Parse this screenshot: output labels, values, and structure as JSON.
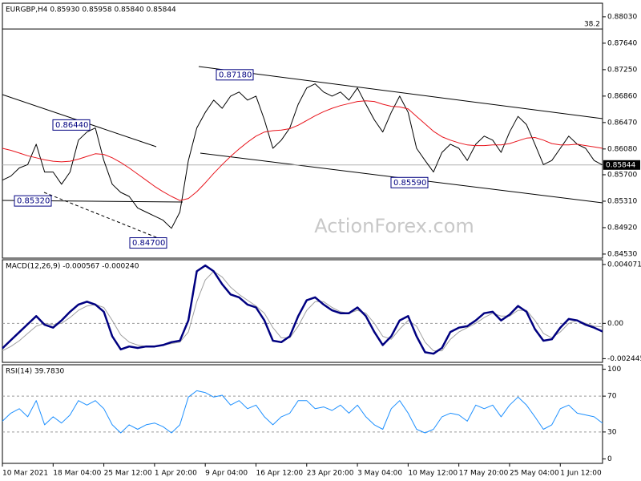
{
  "chart_data": [
    {
      "type": "line",
      "title": "EURGBP,H4 0.85930 0.85958 0.85840 0.85844",
      "ylim": [
        0.8447,
        0.8823
      ],
      "yticks": [
        {
          "value": 0.8803,
          "label": "0.88030"
        },
        {
          "value": 0.8764,
          "label": "0.87640"
        },
        {
          "value": 0.8725,
          "label": "0.87250"
        },
        {
          "value": 0.8686,
          "label": "0.86860"
        },
        {
          "value": 0.8647,
          "label": "0.86470"
        },
        {
          "value": 0.8608,
          "label": "0.86080"
        },
        {
          "value": 0.857,
          "label": "0.85700"
        },
        {
          "value": 0.8531,
          "label": "0.85310"
        },
        {
          "value": 0.8492,
          "label": "0.84920"
        },
        {
          "value": 0.8453,
          "label": "0.84530"
        }
      ],
      "series": [
        {
          "color": "#000000",
          "values": [
            0.8562,
            0.8568,
            0.858,
            0.8585,
            0.8615,
            0.8574,
            0.8574,
            0.8556,
            0.8574,
            0.8621,
            0.8633,
            0.8639,
            0.8591,
            0.8556,
            0.8544,
            0.8538,
            0.8521,
            0.8515,
            0.8509,
            0.8503,
            0.8491,
            0.8515,
            0.8591,
            0.8639,
            0.8662,
            0.868,
            0.8668,
            0.8686,
            0.8692,
            0.868,
            0.8686,
            0.8651,
            0.8609,
            0.8621,
            0.8639,
            0.8674,
            0.8698,
            0.8704,
            0.8692,
            0.8686,
            0.8692,
            0.868,
            0.8698,
            0.8674,
            0.8651,
            0.8633,
            0.8662,
            0.8686,
            0.8662,
            0.8609,
            0.8591,
            0.8574,
            0.8603,
            0.8615,
            0.8609,
            0.8591,
            0.8615,
            0.8627,
            0.8621,
            0.8603,
            0.8633,
            0.8656,
            0.8644,
            0.8615,
            0.8585,
            0.8591,
            0.8609,
            0.8627,
            0.8615,
            0.8609,
            0.8591,
            0.85844
          ]
        },
        {
          "color": "#e8141c",
          "values": [
            0.8609,
            0.8606,
            0.8602,
            0.8598,
            0.8595,
            0.8592,
            0.859,
            0.8589,
            0.859,
            0.8593,
            0.8597,
            0.8601,
            0.86,
            0.8595,
            0.8588,
            0.858,
            0.8571,
            0.8562,
            0.8553,
            0.8545,
            0.8538,
            0.8532,
            0.8535,
            0.8545,
            0.8558,
            0.8572,
            0.8585,
            0.8597,
            0.8608,
            0.8618,
            0.8627,
            0.8633,
            0.8635,
            0.8636,
            0.8638,
            0.8643,
            0.865,
            0.8657,
            0.8663,
            0.8668,
            0.8672,
            0.8675,
            0.8678,
            0.8679,
            0.8678,
            0.8674,
            0.8671,
            0.867,
            0.8667,
            0.8656,
            0.8645,
            0.8634,
            0.8626,
            0.8621,
            0.8617,
            0.8614,
            0.8613,
            0.8613,
            0.8614,
            0.8614,
            0.8616,
            0.862,
            0.8624,
            0.8625,
            0.8621,
            0.8616,
            0.8614,
            0.8614,
            0.8615,
            0.8613,
            0.8611,
            0.8609
          ]
        }
      ],
      "last_price": {
        "value": 0.85844,
        "label": "0.85844"
      },
      "fib_level": {
        "value": 0.8785,
        "label": "38.2"
      },
      "annotations": [
        {
          "value": 0.8644,
          "label": "0.86440"
        },
        {
          "value": 0.8532,
          "label": "0.85320"
        },
        {
          "value": 0.847,
          "label": "0.84700"
        },
        {
          "value": 0.8718,
          "label": "0.87180"
        },
        {
          "value": 0.8559,
          "label": "0.85590"
        }
      ],
      "watermark": "ActionForex.com"
    },
    {
      "type": "line",
      "title": "MACD(12,26,9) -0.000567 -0.000240",
      "ylim": [
        -0.0027,
        0.0044
      ],
      "yticks": [
        0.004071,
        {
          "value": 0,
          "label": "0.00"
        },
        -0.002445
      ],
      "dashed_levels": [
        0
      ],
      "series": [
        {
          "color": "#a0a0a0",
          "width": 1,
          "values": [
            -0.0019,
            -0.0016,
            -0.0012,
            -0.0007,
            -0.0002,
            0,
            -0.0001,
            0,
            0.0004,
            0.0009,
            0.0012,
            0.0013,
            0.0011,
            0.0002,
            -0.0008,
            -0.0013,
            -0.0015,
            -0.0016,
            -0.0016,
            -0.0015,
            -0.0014,
            -0.0013,
            -0.0006,
            0.0015,
            0.003,
            0.0036,
            0.0032,
            0.0025,
            0.002,
            0.0016,
            0.0012,
            0.0007,
            -0.0003,
            -0.001,
            -0.001,
            -0.0002,
            0.0009,
            0.0015,
            0.0015,
            0.0011,
            0.0008,
            0.0007,
            0.0009,
            0.0007,
            0,
            -0.0009,
            -0.0011,
            -0.0004,
            0.0002,
            -0.0002,
            -0.0013,
            -0.0019,
            -0.0019,
            -0.0011,
            -0.0006,
            -0.0003,
            0,
            0.0004,
            0.0007,
            0.0005,
            0.0005,
            0.0009,
            0.0009,
            0.0002,
            -0.0007,
            -0.001,
            -0.0006,
            0,
            0.0002,
            0,
            -0.0002,
            -0.00024
          ]
        },
        {
          "color": "#000080",
          "width": 2.5,
          "values": [
            -0.00173,
            -0.00117,
            -0.00061,
            -6e-05,
            0.0005,
            -0.0001,
            -0.0003,
            0.0002,
            0.0008,
            0.0013,
            0.0015,
            0.0013,
            0.0008,
            -0.0009,
            -0.0018,
            -0.0016,
            -0.0017,
            -0.0016,
            -0.0016,
            -0.0015,
            -0.0013,
            -0.0012,
            0.0002,
            0.0036,
            0.004,
            0.0036,
            0.0027,
            0.002,
            0.0018,
            0.0013,
            0.0011,
            0.0002,
            -0.0012,
            -0.0013,
            -0.0009,
            0.0005,
            0.0016,
            0.0018,
            0.0013,
            0.0009,
            0.0007,
            0.0007,
            0.0011,
            0.0005,
            -0.0006,
            -0.0015,
            -0.0009,
            0.0002,
            0.0005,
            -0.0009,
            -0.002,
            -0.0021,
            -0.0017,
            -0.0006,
            -0.0003,
            -0.0002,
            0.0002,
            0.0007,
            0.0008,
            0.0002,
            0.0006,
            0.0012,
            0.0008,
            -0.0004,
            -0.0012,
            -0.0011,
            -0.0003,
            0.0003,
            0.0002,
            -0.0001,
            -0.0003,
            -0.000567
          ]
        }
      ]
    },
    {
      "type": "line",
      "title": "RSI(14) 39.7830",
      "ylim": [
        -5,
        105
      ],
      "yticks": [
        100,
        70,
        30,
        0
      ],
      "dashed_levels": [
        30,
        70
      ],
      "categories": [
        "10 Mar 2021",
        null,
        null,
        null,
        null,
        null,
        "18 Mar 04:00",
        null,
        null,
        null,
        null,
        null,
        "25 Mar 12:00",
        null,
        null,
        null,
        null,
        null,
        "1 Apr 20:00",
        null,
        null,
        null,
        null,
        null,
        "9 Apr 04:00",
        null,
        null,
        null,
        null,
        null,
        "16 Apr 12:00",
        null,
        null,
        null,
        null,
        null,
        "23 Apr 20:00",
        null,
        null,
        null,
        null,
        null,
        "3 May 04:00",
        null,
        null,
        null,
        null,
        null,
        "10 May 12:00",
        null,
        null,
        null,
        null,
        null,
        "17 May 20:00",
        null,
        null,
        null,
        null,
        null,
        "25 May 04:00",
        null,
        null,
        null,
        null,
        null,
        "1 Jun 12:00",
        null,
        null,
        null,
        null,
        null
      ],
      "series": [
        {
          "color": "#1e90ff",
          "width": 1,
          "values": [
            42,
            51,
            56,
            47,
            65,
            38,
            47,
            40,
            49,
            65,
            60,
            65,
            56,
            38,
            29,
            38,
            33,
            38,
            40,
            36,
            29,
            38,
            69,
            76,
            74,
            69,
            71,
            60,
            65,
            56,
            60,
            47,
            38,
            47,
            51,
            65,
            65,
            56,
            58,
            54,
            60,
            51,
            60,
            47,
            38,
            33,
            56,
            65,
            51,
            33,
            29,
            33,
            47,
            51,
            49,
            42,
            60,
            56,
            60,
            47,
            60,
            69,
            60,
            47,
            33,
            38,
            56,
            60,
            51,
            49,
            47,
            39.783
          ]
        }
      ]
    }
  ]
}
